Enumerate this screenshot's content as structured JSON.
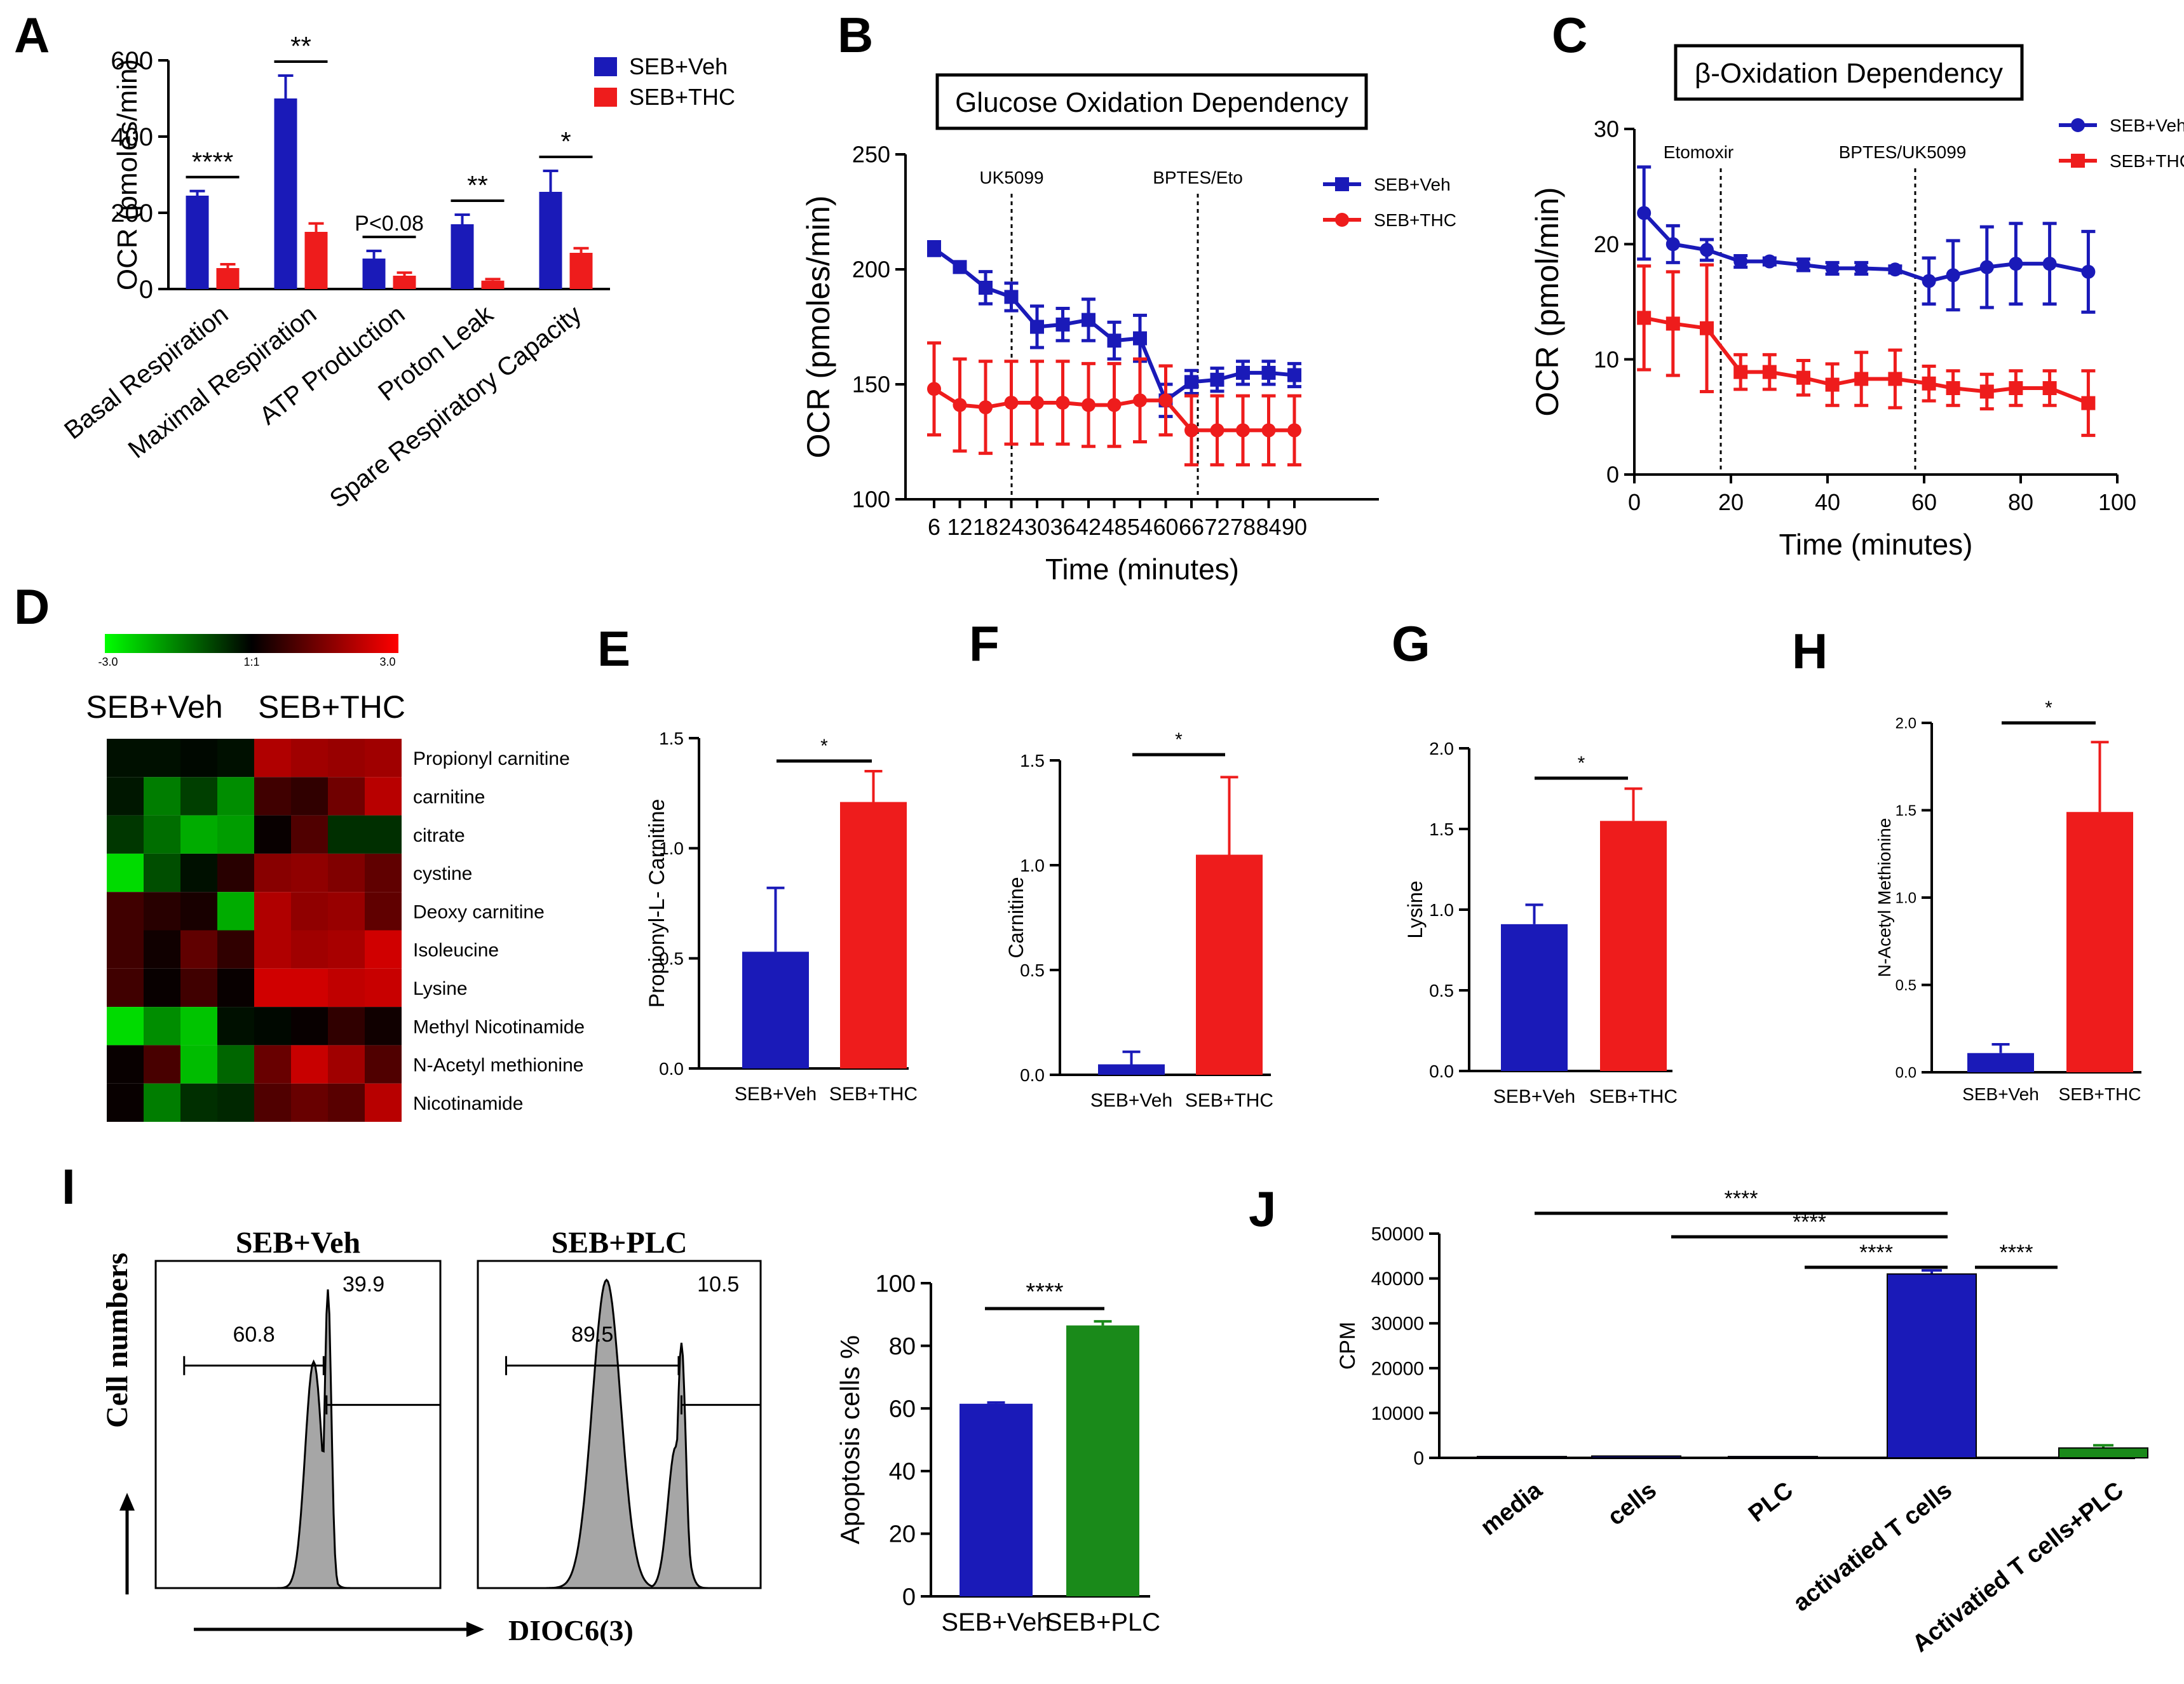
{
  "palette": {
    "veh": "#1a1ab8",
    "thc": "#ee1c1c",
    "plc": "#1a8a1a",
    "black": "#000000",
    "hist": "#a6a6a6"
  },
  "chart_data": [
    {
      "id": "A",
      "letter": "A",
      "type": "bar",
      "ylabel": "OCR (pmoles/min)",
      "ylim": [
        0,
        600
      ],
      "yticks": [
        "0",
        "200",
        "400",
        "600"
      ],
      "categories": [
        "Basal Respiration",
        "Maximal Respiration",
        "ATP Production",
        "Proton Leak",
        "Spare Respiratory Capacity"
      ],
      "series": [
        {
          "name": "SEB+Veh",
          "values": [
            245,
            500,
            80,
            170,
            255
          ],
          "errors": [
            12,
            60,
            20,
            25,
            55
          ]
        },
        {
          "name": "SEB+THC",
          "values": [
            55,
            150,
            35,
            22,
            95
          ],
          "errors": [
            10,
            22,
            8,
            4,
            12
          ]
        }
      ],
      "sig": [
        "****",
        "**",
        "P<0.08",
        "**",
        "*"
      ]
    },
    {
      "id": "B",
      "letter": "B",
      "type": "line",
      "title": "Glucose Oxidation Dependency",
      "xlabel": "Time (minutes)",
      "ylabel": "OCR (pmoles/min)",
      "ylim": [
        100,
        250
      ],
      "yticks": [
        "100",
        "150",
        "200",
        "250"
      ],
      "xticks": [
        "6",
        "12",
        "18",
        "24",
        "30",
        "36",
        "42",
        "48",
        "54",
        "60",
        "66",
        "72",
        "78",
        "84",
        "90"
      ],
      "annotations": [
        "UK5099",
        "BPTES/Eto"
      ],
      "series": [
        {
          "name": "SEB+Veh",
          "x": [
            6,
            12,
            18,
            24,
            30,
            36,
            42,
            48,
            54,
            60,
            66,
            72,
            78,
            84,
            90
          ],
          "values": [
            209,
            201,
            192,
            188,
            175,
            176,
            178,
            169,
            170,
            143,
            151,
            152,
            155,
            155,
            154
          ],
          "errors": [
            3,
            2,
            7,
            6,
            9,
            7,
            9,
            8,
            10,
            7,
            5,
            5,
            5,
            5,
            5
          ]
        },
        {
          "name": "SEB+THC",
          "x": [
            6,
            12,
            18,
            24,
            30,
            36,
            42,
            48,
            54,
            60,
            66,
            72,
            78,
            84,
            90
          ],
          "values": [
            148,
            141,
            140,
            142,
            142,
            142,
            141,
            141,
            143,
            143,
            130,
            130,
            130,
            130,
            130
          ],
          "errors": [
            20,
            20,
            20,
            18,
            18,
            18,
            18,
            18,
            18,
            15,
            15,
            15,
            15,
            15,
            15
          ]
        }
      ]
    },
    {
      "id": "C",
      "letter": "C",
      "type": "line",
      "title": "β-Oxidation Dependency",
      "xlabel": "Time (minutes)",
      "ylabel": "OCR (pmol/min)",
      "xlim": [
        0,
        100
      ],
      "ylim": [
        0,
        30
      ],
      "xticks": [
        "0",
        "20",
        "40",
        "60",
        "80",
        "100"
      ],
      "yticks": [
        "0",
        "10",
        "20",
        "30"
      ],
      "annotations": [
        "Etomoxir",
        "BPTES/UK5099"
      ],
      "series": [
        {
          "name": "SEB+Veh",
          "x": [
            2,
            8,
            15,
            22,
            28,
            35,
            41,
            47,
            54,
            61,
            66,
            73,
            79,
            86,
            94
          ],
          "values": [
            22.7,
            20,
            19.5,
            18.5,
            18.5,
            18.2,
            17.9,
            17.9,
            17.8,
            16.8,
            17.3,
            18,
            18.3,
            18.3,
            17.6
          ],
          "errors": [
            4,
            1.6,
            0.9,
            0.5,
            0.3,
            0.5,
            0.5,
            0.5,
            0.3,
            2,
            3,
            3.5,
            3.5,
            3.5,
            3.5
          ]
        },
        {
          "name": "SEB+THC",
          "x": [
            2,
            8,
            15,
            22,
            28,
            35,
            41,
            47,
            54,
            61,
            66,
            73,
            79,
            86,
            94
          ],
          "values": [
            13.6,
            13.1,
            12.7,
            8.9,
            8.9,
            8.4,
            7.8,
            8.3,
            8.3,
            7.9,
            7.5,
            7.2,
            7.5,
            7.5,
            6.2
          ],
          "errors": [
            4.5,
            4.5,
            5.5,
            1.5,
            1.5,
            1.5,
            1.8,
            2.3,
            2.5,
            1.5,
            1.5,
            1.5,
            1.5,
            1.5,
            2.8
          ]
        }
      ]
    },
    {
      "id": "D",
      "letter": "D",
      "type": "heatmap",
      "scale_labels": [
        "-3.0",
        "1:1",
        "3.0"
      ],
      "groups": [
        "SEB+Veh",
        "SEB+THC"
      ],
      "rows": [
        "Propionyl carnitine",
        "carnitine",
        "citrate",
        "cystine",
        "Deoxy carnitine",
        "Isoleucine",
        "Lysine",
        "Methyl Nicotinamide",
        "N-Acetyl methionine",
        "Nicotinamide"
      ],
      "values": [
        [
          -0.2,
          -0.2,
          -0.1,
          -0.2,
          2.2,
          2.0,
          1.9,
          2.0
        ],
        [
          -0.3,
          -1.6,
          -0.8,
          -1.8,
          0.8,
          0.6,
          1.4,
          2.3
        ],
        [
          -0.7,
          -1.4,
          -2.2,
          -2.0,
          0.1,
          1.0,
          -0.6,
          -0.6
        ],
        [
          -2.8,
          -1.0,
          -0.2,
          0.5,
          1.7,
          1.8,
          1.6,
          1.2
        ],
        [
          0.8,
          0.5,
          0.3,
          -2.2,
          2.2,
          1.8,
          1.9,
          1.2
        ],
        [
          0.8,
          0.2,
          1.2,
          0.6,
          2.2,
          2.0,
          2.1,
          2.6
        ],
        [
          0.8,
          0.1,
          0.8,
          0.1,
          2.6,
          2.6,
          2.4,
          2.5
        ],
        [
          -2.8,
          -1.8,
          -2.5,
          -0.2,
          -0.1,
          0.1,
          0.6,
          0.2
        ],
        [
          0.1,
          0.9,
          -2.4,
          -1.3,
          1.3,
          2.5,
          2.0,
          1.0
        ],
        [
          0.1,
          -1.6,
          -0.6,
          -0.5,
          1.0,
          1.3,
          1.1,
          2.3
        ]
      ]
    },
    {
      "id": "E",
      "letter": "E",
      "type": "bar",
      "ylabel": "Propionyl-L- Carnitine",
      "ylim": [
        0,
        1.5
      ],
      "yticks": [
        "0.0",
        "0.5",
        "1.0",
        "1.5"
      ],
      "categories": [
        "SEB+Veh",
        "SEB+THC"
      ],
      "values": [
        0.53,
        1.21
      ],
      "errors": [
        0.29,
        0.14
      ],
      "sig": "*"
    },
    {
      "id": "F",
      "letter": "F",
      "type": "bar",
      "ylabel": "Carnitine",
      "ylim": [
        0,
        1.5
      ],
      "yticks": [
        "0.0",
        "0.5",
        "1.0",
        "1.5"
      ],
      "categories": [
        "SEB+Veh",
        "SEB+THC"
      ],
      "values": [
        0.05,
        1.05
      ],
      "errors": [
        0.06,
        0.37
      ],
      "sig": "*"
    },
    {
      "id": "G",
      "letter": "G",
      "type": "bar",
      "ylabel": "Lysine",
      "ylim": [
        0,
        2.0
      ],
      "yticks": [
        "0.0",
        "0.5",
        "1.0",
        "1.5",
        "2.0"
      ],
      "categories": [
        "SEB+Veh",
        "SEB+THC"
      ],
      "values": [
        0.91,
        1.55
      ],
      "errors": [
        0.12,
        0.2
      ],
      "sig": "*"
    },
    {
      "id": "H",
      "letter": "H",
      "type": "bar",
      "ylabel": "N-Acetyl Methionine",
      "ylim": [
        0,
        2.0
      ],
      "yticks": [
        "0.0",
        "0.5",
        "1.0",
        "1.5",
        "2.0"
      ],
      "categories": [
        "SEB+Veh",
        "SEB+THC"
      ],
      "values": [
        0.11,
        1.49
      ],
      "errors": [
        0.05,
        0.4
      ],
      "sig": "*"
    },
    {
      "id": "I",
      "letter": "I",
      "type": "histogram",
      "ylabel": "Cell numbers",
      "xlabel": "DIOC6(3)",
      "panels": [
        {
          "title": "SEB+Veh",
          "gate_left": "60.8",
          "gate_right": "39.9"
        },
        {
          "title": "SEB+PLC",
          "gate_left": "89.5",
          "gate_right": "10.5"
        }
      ]
    },
    {
      "id": "I2",
      "type": "bar",
      "ylabel": "Apoptosis cells %",
      "ylim": [
        0,
        100
      ],
      "yticks": [
        "0",
        "20",
        "40",
        "60",
        "80",
        "100"
      ],
      "categories": [
        "SEB+Veh",
        "SEB+PLC"
      ],
      "values": [
        61.5,
        86.5
      ],
      "errors": [
        0.4,
        1.3
      ],
      "sig": "****"
    },
    {
      "id": "J",
      "letter": "J",
      "type": "bar",
      "ylabel": "CPM",
      "ylim": [
        0,
        50000
      ],
      "yticks": [
        "0",
        "10000",
        "20000",
        "30000",
        "40000",
        "50000"
      ],
      "categories": [
        "media",
        "cells",
        "PLC",
        "activatied T cells",
        "Activatied T cells+PLC"
      ],
      "values": [
        300,
        400,
        300,
        41000,
        2200
      ],
      "errors": [
        0,
        0,
        0,
        800,
        600
      ],
      "sig": [
        "****",
        "****",
        "****",
        "****"
      ]
    }
  ]
}
